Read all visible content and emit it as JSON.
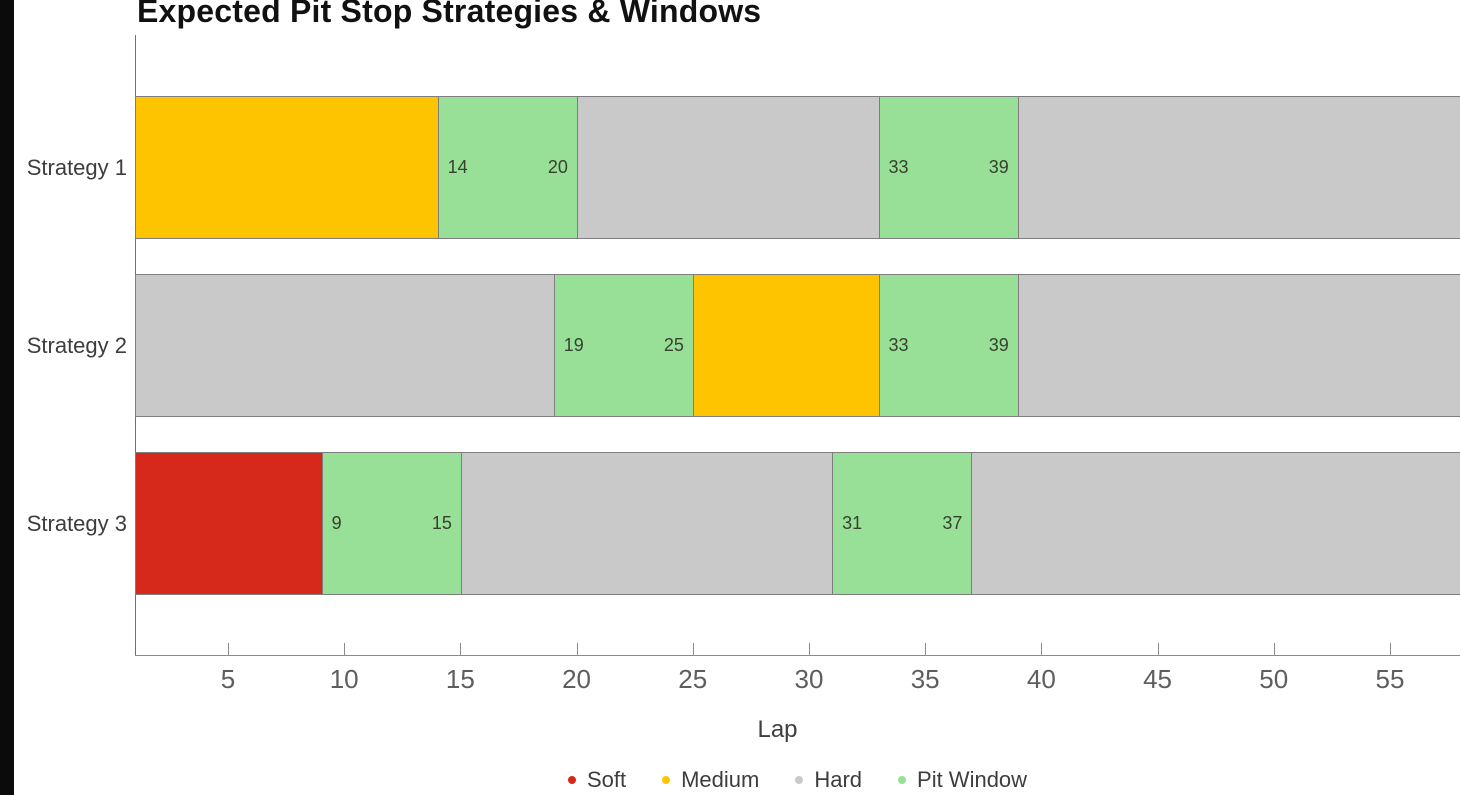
{
  "chart_data": {
    "type": "bar",
    "orientation": "horizontal",
    "title": "Expected Pit Stop Strategies & Windows",
    "xlabel": "Lap",
    "x_domain": [
      1,
      58.1
    ],
    "x_ticks": [
      5,
      10,
      15,
      20,
      25,
      30,
      35,
      40,
      45,
      50,
      55
    ],
    "grid": false,
    "legend_position": "bottom-center",
    "colors": {
      "soft": "#d6291c",
      "medium": "#ffc400",
      "hard": "#c9c9c9",
      "pit_window": "#98df98"
    },
    "legend": [
      {
        "key": "soft",
        "label": "Soft"
      },
      {
        "key": "medium",
        "label": "Medium"
      },
      {
        "key": "hard",
        "label": "Hard"
      },
      {
        "key": "pit_window",
        "label": "Pit Window"
      }
    ],
    "rows": [
      {
        "label": "Strategy 1",
        "segments": [
          {
            "type": "medium",
            "start": 1,
            "end": 14
          },
          {
            "type": "pit_window",
            "start": 14,
            "end": 20,
            "start_label": "14",
            "end_label": "20"
          },
          {
            "type": "hard",
            "start": 20,
            "end": 33
          },
          {
            "type": "pit_window",
            "start": 33,
            "end": 39,
            "start_label": "33",
            "end_label": "39"
          },
          {
            "type": "hard",
            "start": 39,
            "end": 58.1
          }
        ]
      },
      {
        "label": "Strategy 2",
        "segments": [
          {
            "type": "hard",
            "start": 1,
            "end": 19
          },
          {
            "type": "pit_window",
            "start": 19,
            "end": 25,
            "start_label": "19",
            "end_label": "25"
          },
          {
            "type": "medium",
            "start": 25,
            "end": 33
          },
          {
            "type": "pit_window",
            "start": 33,
            "end": 39,
            "start_label": "33",
            "end_label": "39"
          },
          {
            "type": "hard",
            "start": 39,
            "end": 58.1
          }
        ]
      },
      {
        "label": "Strategy 3",
        "segments": [
          {
            "type": "soft",
            "start": 1,
            "end": 9
          },
          {
            "type": "pit_window",
            "start": 9,
            "end": 15,
            "start_label": "9",
            "end_label": "15"
          },
          {
            "type": "hard",
            "start": 15,
            "end": 31
          },
          {
            "type": "pit_window",
            "start": 31,
            "end": 37,
            "start_label": "31",
            "end_label": "37"
          },
          {
            "type": "hard",
            "start": 37,
            "end": 58.1
          }
        ]
      }
    ]
  }
}
